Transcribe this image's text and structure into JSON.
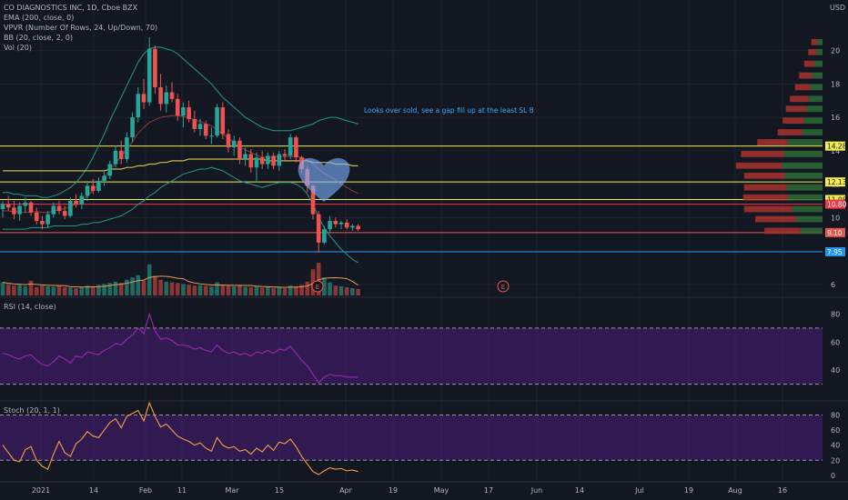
{
  "header": {
    "symbol": "CO DIAGNOSTICS INC, 1D, Cboe BZX",
    "currency": "USD",
    "indicators": [
      "EMA (200, close, 0)",
      "VPVR (Number Of Rows, 24, Up/Down, 70)",
      "BB (20, close, 2, 0)",
      "Vol (20)"
    ]
  },
  "annotation": "Looks over sold, see a gap fill up at the least SL 8",
  "rsi_label": "RSI (14, close)",
  "stoch_label": "Stoch (20, 1, 1)",
  "colors": {
    "up": "#26a69a",
    "down": "#ef5350",
    "bg": "#131722",
    "yellow": "#f2ec4e",
    "blue_line": "#2196f3",
    "purple_band": "#4a1d7a",
    "heart": "#7fb3ff",
    "ema": "#c8b84a"
  },
  "chart_data": {
    "type": "candlestick",
    "x_ticks": [
      "2021",
      "14",
      "Feb",
      "11",
      "Mar",
      "15",
      "Apr",
      "19",
      "May",
      "17",
      "Jun",
      "14",
      "Jul",
      "19",
      "Aug",
      "16"
    ],
    "price_axis": {
      "ylim": [
        5.5,
        21.5
      ],
      "ticks": [
        6,
        8,
        10,
        12,
        14,
        16,
        18,
        20
      ]
    },
    "candles": [
      [
        10.5,
        11.0,
        10.0,
        10.8
      ],
      [
        10.8,
        11.3,
        10.4,
        10.6
      ],
      [
        10.6,
        11.0,
        9.9,
        10.2
      ],
      [
        10.2,
        10.9,
        9.8,
        10.7
      ],
      [
        10.7,
        11.2,
        10.3,
        10.9
      ],
      [
        10.9,
        11.0,
        10.1,
        10.3
      ],
      [
        10.3,
        10.6,
        9.6,
        9.8
      ],
      [
        9.8,
        10.1,
        9.3,
        9.6
      ],
      [
        9.6,
        10.4,
        9.4,
        10.2
      ],
      [
        10.2,
        10.9,
        10.0,
        10.7
      ],
      [
        10.7,
        11.0,
        10.2,
        10.4
      ],
      [
        10.4,
        10.7,
        9.9,
        10.1
      ],
      [
        10.1,
        11.2,
        10.0,
        11.0
      ],
      [
        11.0,
        11.4,
        10.6,
        10.8
      ],
      [
        10.8,
        11.5,
        10.5,
        11.3
      ],
      [
        11.3,
        12.2,
        11.0,
        11.9
      ],
      [
        11.9,
        12.3,
        11.4,
        11.6
      ],
      [
        11.6,
        12.4,
        11.5,
        12.2
      ],
      [
        12.2,
        12.8,
        11.9,
        12.5
      ],
      [
        12.5,
        13.4,
        12.3,
        13.2
      ],
      [
        13.2,
        14.3,
        13.0,
        14.0
      ],
      [
        14.0,
        14.6,
        13.2,
        13.5
      ],
      [
        13.5,
        15.1,
        13.3,
        14.8
      ],
      [
        14.8,
        16.3,
        14.5,
        16.0
      ],
      [
        16.0,
        17.8,
        15.7,
        17.4
      ],
      [
        17.4,
        18.3,
        16.5,
        16.9
      ],
      [
        16.9,
        20.8,
        16.7,
        20.1
      ],
      [
        20.1,
        20.3,
        17.4,
        17.8
      ],
      [
        17.8,
        18.6,
        16.4,
        16.8
      ],
      [
        16.8,
        17.9,
        16.3,
        17.5
      ],
      [
        17.5,
        18.1,
        16.9,
        17.1
      ],
      [
        17.1,
        17.4,
        15.8,
        16.1
      ],
      [
        16.1,
        16.9,
        15.4,
        16.6
      ],
      [
        16.6,
        17.0,
        15.7,
        15.9
      ],
      [
        15.9,
        16.4,
        15.1,
        15.3
      ],
      [
        15.3,
        15.9,
        14.9,
        15.6
      ],
      [
        15.6,
        15.8,
        14.7,
        14.9
      ],
      [
        14.9,
        15.4,
        14.4,
        14.9
      ],
      [
        14.9,
        16.8,
        14.8,
        16.6
      ],
      [
        16.6,
        16.9,
        14.7,
        15.0
      ],
      [
        15.0,
        15.3,
        13.9,
        14.2
      ],
      [
        14.2,
        14.9,
        13.7,
        14.6
      ],
      [
        14.6,
        14.8,
        13.2,
        13.5
      ],
      [
        13.5,
        14.2,
        13.1,
        13.8
      ],
      [
        13.8,
        14.1,
        12.7,
        13.0
      ],
      [
        13.0,
        13.9,
        12.1,
        13.6
      ],
      [
        13.6,
        14.0,
        12.9,
        13.2
      ],
      [
        13.2,
        13.9,
        12.9,
        13.7
      ],
      [
        13.7,
        13.9,
        12.9,
        13.1
      ],
      [
        13.1,
        14.0,
        12.8,
        13.8
      ],
      [
        13.8,
        14.1,
        13.4,
        13.7
      ],
      [
        13.7,
        15.0,
        13.5,
        14.8
      ],
      [
        14.8,
        14.9,
        13.3,
        13.6
      ],
      [
        13.6,
        13.7,
        12.7,
        12.9
      ],
      [
        12.9,
        13.1,
        11.5,
        11.9
      ],
      [
        11.9,
        12.0,
        9.9,
        10.2
      ],
      [
        10.2,
        10.4,
        7.9,
        8.5
      ],
      [
        8.5,
        9.5,
        8.4,
        9.3
      ],
      [
        9.3,
        10.1,
        9.1,
        9.8
      ],
      [
        9.8,
        10.0,
        9.4,
        9.6
      ],
      [
        9.6,
        9.8,
        9.3,
        9.7
      ],
      [
        9.7,
        9.9,
        9.3,
        9.4
      ],
      [
        9.4,
        9.6,
        9.2,
        9.5
      ],
      [
        9.5,
        9.6,
        9.2,
        9.3
      ]
    ],
    "volume": [
      40,
      35,
      30,
      32,
      28,
      45,
      25,
      30,
      28,
      26,
      30,
      25,
      24,
      22,
      26,
      30,
      28,
      32,
      35,
      38,
      42,
      38,
      48,
      55,
      62,
      45,
      95,
      60,
      48,
      42,
      40,
      38,
      35,
      33,
      30,
      31,
      29,
      27,
      40,
      32,
      30,
      28,
      30,
      26,
      25,
      28,
      24,
      26,
      23,
      25,
      22,
      30,
      28,
      32,
      42,
      80,
      100,
      55,
      40,
      30,
      28,
      25,
      22,
      20
    ],
    "ema200": [
      12.8,
      12.8,
      12.8,
      12.8,
      12.8,
      12.8,
      12.8,
      12.8,
      12.8,
      12.8,
      12.8,
      12.8,
      12.8,
      12.8,
      12.8,
      12.8,
      12.8,
      12.8,
      12.8,
      12.9,
      12.9,
      12.9,
      13.0,
      13.0,
      13.1,
      13.1,
      13.2,
      13.2,
      13.3,
      13.3,
      13.4,
      13.4,
      13.4,
      13.5,
      13.5,
      13.5,
      13.5,
      13.5,
      13.5,
      13.5,
      13.5,
      13.5,
      13.5,
      13.5,
      13.5,
      13.5,
      13.5,
      13.4,
      13.4,
      13.4,
      13.4,
      13.4,
      13.4,
      13.4,
      13.4,
      13.3,
      13.3,
      13.3,
      13.3,
      13.2,
      13.2,
      13.2,
      13.1,
      13.1
    ],
    "bb_upper": [
      11.5,
      11.5,
      11.4,
      11.4,
      11.3,
      11.3,
      11.3,
      11.2,
      11.2,
      11.3,
      11.4,
      11.6,
      11.8,
      12.1,
      12.5,
      13.0,
      13.6,
      14.3,
      15.0,
      15.8,
      16.5,
      17.2,
      17.9,
      18.6,
      19.3,
      19.8,
      20.1,
      20.2,
      20.2,
      20.1,
      20.0,
      19.8,
      19.5,
      19.2,
      18.9,
      18.6,
      18.3,
      18.0,
      17.6,
      17.2,
      16.9,
      16.6,
      16.3,
      16.0,
      15.8,
      15.6,
      15.4,
      15.3,
      15.2,
      15.2,
      15.2,
      15.2,
      15.3,
      15.4,
      15.5,
      15.6,
      15.8,
      15.9,
      16.0,
      16.0,
      15.9,
      15.8,
      15.7,
      15.6
    ],
    "bb_lower": [
      9.3,
      9.3,
      9.3,
      9.3,
      9.3,
      9.4,
      9.4,
      9.4,
      9.4,
      9.5,
      9.5,
      9.5,
      9.5,
      9.5,
      9.6,
      9.6,
      9.7,
      9.7,
      9.8,
      9.9,
      10.0,
      10.1,
      10.3,
      10.5,
      10.8,
      11.0,
      11.3,
      11.5,
      11.8,
      12.0,
      12.2,
      12.4,
      12.6,
      12.7,
      12.8,
      12.9,
      12.9,
      13.0,
      12.9,
      12.8,
      12.6,
      12.4,
      12.2,
      12.1,
      12.0,
      11.9,
      11.8,
      11.9,
      12.0,
      12.1,
      12.1,
      12.1,
      12.0,
      11.8,
      11.4,
      10.8,
      10.0,
      9.4,
      8.9,
      8.5,
      8.1,
      7.8,
      7.5,
      7.3
    ],
    "horizontal_levels": [
      {
        "price": 14.28,
        "label": "14.28",
        "color": "#f2ec4e"
      },
      {
        "price": 12.13,
        "label": "12.13",
        "color": "#f2ec4e"
      },
      {
        "price": 11.08,
        "label": "11.08",
        "color": "#f2ec4e"
      },
      {
        "price": 10.8,
        "label": "10.80",
        "color": "#f23645"
      },
      {
        "price": 9.1,
        "label": "9.10",
        "color": "#ef5350"
      },
      {
        "price": 7.95,
        "label": "7.95",
        "color": "#2196f3"
      }
    ],
    "vpvr": [
      {
        "price": 20.5,
        "up": 0.05,
        "down": 0.06
      },
      {
        "price": 19.9,
        "up": 0.06,
        "down": 0.08
      },
      {
        "price": 19.2,
        "up": 0.08,
        "down": 0.1
      },
      {
        "price": 18.5,
        "up": 0.1,
        "down": 0.13
      },
      {
        "price": 17.8,
        "up": 0.12,
        "down": 0.15
      },
      {
        "price": 17.1,
        "up": 0.14,
        "down": 0.18
      },
      {
        "price": 16.5,
        "up": 0.16,
        "down": 0.2
      },
      {
        "price": 15.8,
        "up": 0.18,
        "down": 0.21
      },
      {
        "price": 15.1,
        "up": 0.2,
        "down": 0.24
      },
      {
        "price": 14.5,
        "up": 0.34,
        "down": 0.3
      },
      {
        "price": 13.8,
        "up": 0.38,
        "down": 0.42
      },
      {
        "price": 13.1,
        "up": 0.4,
        "down": 0.45
      },
      {
        "price": 12.5,
        "up": 0.37,
        "down": 0.4
      },
      {
        "price": 11.8,
        "up": 0.35,
        "down": 0.42
      },
      {
        "price": 11.2,
        "up": 0.34,
        "down": 0.44
      },
      {
        "price": 10.5,
        "up": 0.3,
        "down": 0.47
      },
      {
        "price": 9.9,
        "up": 0.26,
        "down": 0.4
      },
      {
        "price": 9.2,
        "up": 0.22,
        "down": 0.35
      }
    ],
    "rsi": {
      "ylim": [
        20,
        90
      ],
      "ticks": [
        40,
        60,
        80
      ],
      "band": [
        30,
        70
      ],
      "values": [
        52,
        51,
        49,
        48,
        50,
        51,
        47,
        44,
        43,
        46,
        50,
        48,
        45,
        50,
        49,
        53,
        52,
        51,
        54,
        56,
        59,
        58,
        62,
        65,
        70,
        66,
        80,
        68,
        62,
        63,
        61,
        58,
        58,
        57,
        55,
        56,
        54,
        53,
        58,
        54,
        52,
        53,
        51,
        52,
        50,
        53,
        52,
        54,
        52,
        55,
        54,
        57,
        52,
        47,
        43,
        37,
        31,
        35,
        37,
        36,
        36,
        35,
        35,
        35
      ]
    },
    "stoch": {
      "ylim": [
        -5,
        95
      ],
      "ticks": [
        0,
        20,
        40,
        60,
        80
      ],
      "band": [
        20,
        80
      ],
      "values": [
        40,
        30,
        20,
        18,
        34,
        38,
        20,
        12,
        8,
        28,
        45,
        30,
        25,
        42,
        48,
        58,
        52,
        50,
        60,
        70,
        75,
        63,
        78,
        82,
        86,
        72,
        96,
        78,
        64,
        68,
        60,
        52,
        48,
        45,
        40,
        43,
        36,
        32,
        50,
        40,
        36,
        38,
        32,
        34,
        28,
        36,
        31,
        40,
        33,
        44,
        42,
        48,
        38,
        25,
        15,
        5,
        1,
        6,
        10,
        8,
        9,
        6,
        7,
        5
      ]
    }
  }
}
